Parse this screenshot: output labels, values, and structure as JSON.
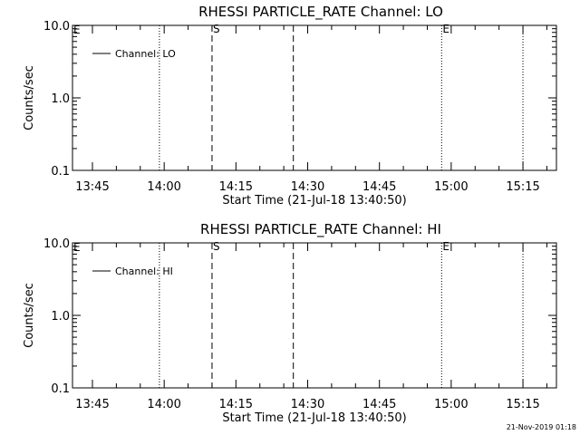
{
  "chart_data": [
    {
      "type": "line",
      "title": "RHESSI PARTICLE_RATE Channel: LO",
      "xlabel": "Start Time (21-Jul-18 13:40:50)",
      "ylabel": "Counts/sec",
      "x_ticks": [
        "13:45",
        "14:00",
        "14:15",
        "14:30",
        "14:45",
        "15:00",
        "15:15"
      ],
      "y_ticks": [
        "0.1",
        "1.0",
        "10.0"
      ],
      "xlim": [
        "13:40:50",
        "15:22"
      ],
      "ylim": [
        0.1,
        10.0
      ],
      "yscale": "log",
      "grid": false,
      "legend_position": "top-left",
      "series": [
        {
          "name": "Channel: LO",
          "x": [],
          "values": []
        }
      ],
      "vlines": [
        {
          "time": "13:59",
          "style": "dotted",
          "label": ""
        },
        {
          "time": "14:10",
          "style": "dashed",
          "label": "S"
        },
        {
          "time": "14:27",
          "style": "dashed",
          "label": ""
        },
        {
          "time": "14:58",
          "style": "dotted",
          "label": "E"
        },
        {
          "time": "15:15",
          "style": "dotted",
          "label": ""
        }
      ],
      "corner_label": "E"
    },
    {
      "type": "line",
      "title": "RHESSI PARTICLE_RATE Channel: HI",
      "xlabel": "Start Time (21-Jul-18 13:40:50)",
      "ylabel": "Counts/sec",
      "x_ticks": [
        "13:45",
        "14:00",
        "14:15",
        "14:30",
        "14:45",
        "15:00",
        "15:15"
      ],
      "y_ticks": [
        "0.1",
        "1.0",
        "10.0"
      ],
      "xlim": [
        "13:40:50",
        "15:22"
      ],
      "ylim": [
        0.1,
        10.0
      ],
      "yscale": "log",
      "grid": false,
      "legend_position": "top-left",
      "series": [
        {
          "name": "Channel: HI",
          "x": [],
          "values": []
        }
      ],
      "vlines": [
        {
          "time": "13:59",
          "style": "dotted",
          "label": ""
        },
        {
          "time": "14:10",
          "style": "dashed",
          "label": "S"
        },
        {
          "time": "14:27",
          "style": "dashed",
          "label": ""
        },
        {
          "time": "14:58",
          "style": "dotted",
          "label": "E"
        },
        {
          "time": "15:15",
          "style": "dotted",
          "label": ""
        }
      ],
      "corner_label": "E"
    }
  ],
  "footer": {
    "timestamp": "21-Nov-2019 01:18"
  },
  "colors": {
    "background": "#ffffff",
    "foreground": "#000000"
  }
}
